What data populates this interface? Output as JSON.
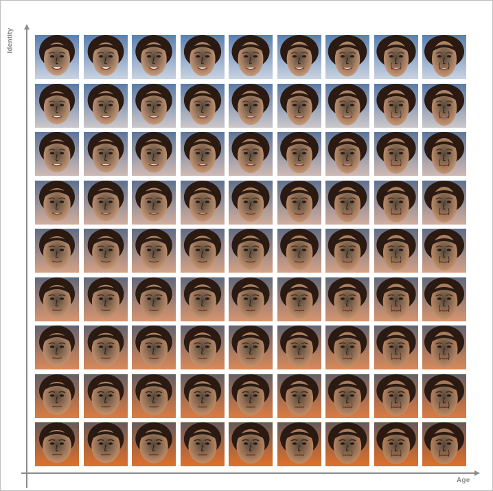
{
  "axes": {
    "y_label": "Identity",
    "x_label": "Age"
  },
  "grid": {
    "rows": 9,
    "cols": 9,
    "tile_content": "face-portrait",
    "row_order_note_visible": false
  },
  "colors": {
    "axis": "#8c8c8c",
    "label": "#8a8a8a",
    "hair": "#2a1a12",
    "skin_young": "#d6a582",
    "skin_old": "#c98d62",
    "bg_top": "#5a7fb0",
    "bg_bottom": "#e0702a"
  }
}
